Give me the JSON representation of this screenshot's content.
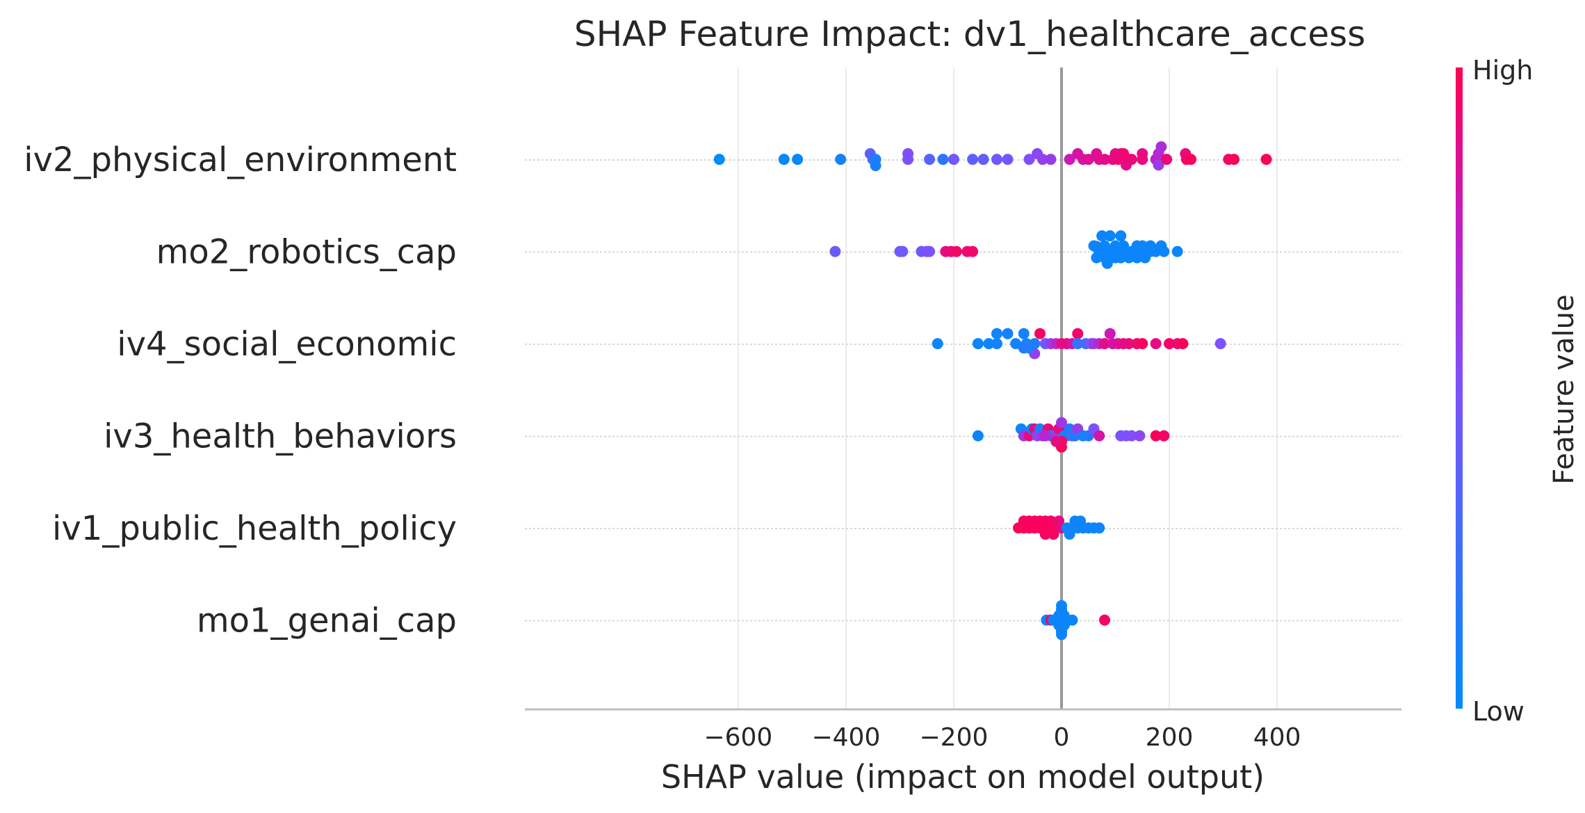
{
  "chart_data": {
    "type": "scatter",
    "subtype": "shap-beeswarm",
    "title": "SHAP Feature Impact: dv1_healthcare_access",
    "xlabel": "SHAP value (impact on model output)",
    "ylabel": "",
    "xlim": [
      -690,
      440
    ],
    "xticks": [
      -600,
      -400,
      -200,
      0,
      200,
      400
    ],
    "xtick_labels": [
      "−600",
      "−400",
      "−200",
      "0",
      "200",
      "400"
    ],
    "grid": true,
    "colorbar": {
      "label": "Feature value",
      "high": "High",
      "low": "Low",
      "low_color": "#008bfb",
      "high_color": "#ff0051"
    },
    "features": [
      "iv2_physical_environment",
      "mo2_robotics_cap",
      "iv4_social_economic",
      "iv3_health_behaviors",
      "iv1_public_health_policy",
      "mo1_genai_cap"
    ],
    "series": [
      {
        "name": "iv2_physical_environment",
        "points": [
          [
            -635,
            0.05
          ],
          [
            -515,
            0.05
          ],
          [
            -490,
            0.05
          ],
          [
            -410,
            0.05
          ],
          [
            -355,
            0.5
          ],
          [
            -350,
            0.05
          ],
          [
            -345,
            0.05
          ],
          [
            -345,
            -0.45
          ],
          [
            -285,
            0.5
          ],
          [
            -285,
            0.05
          ],
          [
            -245,
            0.05
          ],
          [
            -220,
            0.05
          ],
          [
            -200,
            0.05
          ],
          [
            -165,
            0.05
          ],
          [
            -145,
            0.05
          ],
          [
            -120,
            0.05
          ],
          [
            -100,
            0.05
          ],
          [
            -60,
            0.05
          ],
          [
            -45,
            0.5
          ],
          [
            -35,
            0.05
          ],
          [
            -20,
            0.05
          ],
          [
            15,
            0.05
          ],
          [
            30,
            0.5
          ],
          [
            40,
            0.05
          ],
          [
            50,
            0.05
          ],
          [
            65,
            0.5
          ],
          [
            70,
            0.05
          ],
          [
            80,
            0.05
          ],
          [
            95,
            0.05
          ],
          [
            100,
            0.5
          ],
          [
            105,
            0.05
          ],
          [
            110,
            0.5
          ],
          [
            115,
            0.5
          ],
          [
            125,
            0.05
          ],
          [
            120,
            -0.4
          ],
          [
            130,
            0.05
          ],
          [
            150,
            0.5
          ],
          [
            150,
            0.05
          ],
          [
            175,
            0.05
          ],
          [
            180,
            0.5
          ],
          [
            180,
            -0.4
          ],
          [
            185,
            1.05
          ],
          [
            195,
            0.05
          ],
          [
            230,
            0.5
          ],
          [
            232,
            0.05
          ],
          [
            240,
            0.05
          ],
          [
            310,
            0.05
          ],
          [
            320,
            0.05
          ],
          [
            380,
            0.05
          ]
        ],
        "values": [
          0.0,
          0.03,
          0.04,
          0.08,
          0.38,
          0.32,
          0.1,
          0.1,
          0.52,
          0.5,
          0.34,
          0.18,
          0.45,
          0.38,
          0.4,
          0.46,
          0.49,
          0.52,
          0.55,
          0.58,
          0.6,
          0.78,
          0.82,
          0.83,
          0.85,
          0.86,
          0.87,
          0.88,
          0.9,
          0.9,
          0.92,
          0.88,
          0.95,
          0.9,
          0.88,
          0.92,
          0.88,
          0.9,
          0.72,
          0.7,
          0.6,
          0.66,
          0.92,
          0.9,
          0.95,
          0.98,
          0.96,
          0.98,
          0.99
        ]
      },
      {
        "name": "mo2_robotics_cap",
        "points": [
          [
            -420,
            0.05
          ],
          [
            -300,
            0.05
          ],
          [
            -295,
            0.05
          ],
          [
            -260,
            0.05
          ],
          [
            -250,
            0.05
          ],
          [
            -245,
            0.05
          ],
          [
            -215,
            0.05
          ],
          [
            -205,
            0.05
          ],
          [
            -195,
            0.05
          ],
          [
            -175,
            0.05
          ],
          [
            -165,
            0.05
          ],
          [
            65,
            0.45
          ],
          [
            75,
            1.3
          ],
          [
            90,
            1.3
          ],
          [
            110,
            1.3
          ],
          [
            60,
            0.5
          ],
          [
            80,
            0.5
          ],
          [
            100,
            0.5
          ],
          [
            115,
            0.5
          ],
          [
            140,
            0.5
          ],
          [
            150,
            0.5
          ],
          [
            165,
            0.5
          ],
          [
            185,
            0.5
          ],
          [
            70,
            0.05
          ],
          [
            75,
            0.05
          ],
          [
            85,
            0.05
          ],
          [
            95,
            0.05
          ],
          [
            105,
            0.05
          ],
          [
            110,
            0.05
          ],
          [
            120,
            0.05
          ],
          [
            130,
            0.05
          ],
          [
            135,
            0.05
          ],
          [
            145,
            0.05
          ],
          [
            155,
            0.05
          ],
          [
            165,
            0.05
          ],
          [
            175,
            0.05
          ],
          [
            190,
            0.05
          ],
          [
            215,
            0.05
          ],
          [
            65,
            -0.45
          ],
          [
            80,
            -0.45
          ],
          [
            100,
            -0.45
          ],
          [
            110,
            -0.45
          ],
          [
            125,
            -0.45
          ],
          [
            140,
            -0.45
          ],
          [
            155,
            -0.45
          ],
          [
            85,
            -0.9
          ]
        ],
        "values": [
          0.42,
          0.44,
          0.44,
          0.44,
          0.5,
          0.5,
          0.9,
          0.92,
          0.95,
          0.92,
          0.95,
          0.1,
          0.05,
          0.05,
          0.05,
          0.05,
          0.05,
          0.05,
          0.05,
          0.05,
          0.05,
          0.05,
          0.05,
          0.05,
          0.05,
          0.05,
          0.05,
          0.05,
          0.05,
          0.05,
          0.05,
          0.05,
          0.05,
          0.05,
          0.05,
          0.05,
          0.05,
          0.05,
          0.05,
          0.05,
          0.05,
          0.05,
          0.05,
          0.05,
          0.05,
          0.05
        ]
      },
      {
        "name": "iv4_social_economic",
        "points": [
          [
            -230,
            0.05
          ],
          [
            -155,
            0.05
          ],
          [
            -135,
            0.05
          ],
          [
            -120,
            0.05
          ],
          [
            -120,
            0.85
          ],
          [
            -100,
            0.85
          ],
          [
            -85,
            0.05
          ],
          [
            -70,
            0.85
          ],
          [
            -65,
            0.05
          ],
          [
            -50,
            0.05
          ],
          [
            -40,
            0.85
          ],
          [
            -30,
            0.05
          ],
          [
            -20,
            0.05
          ],
          [
            -10,
            0.05
          ],
          [
            0,
            0.05
          ],
          [
            10,
            0.05
          ],
          [
            20,
            0.05
          ],
          [
            30,
            0.85
          ],
          [
            30,
            0.05
          ],
          [
            45,
            0.05
          ],
          [
            55,
            0.05
          ],
          [
            60,
            0.05
          ],
          [
            70,
            0.05
          ],
          [
            80,
            0.05
          ],
          [
            90,
            0.85
          ],
          [
            95,
            0.05
          ],
          [
            105,
            0.05
          ],
          [
            115,
            0.05
          ],
          [
            125,
            0.05
          ],
          [
            140,
            0.05
          ],
          [
            150,
            0.05
          ],
          [
            175,
            0.05
          ],
          [
            200,
            0.05
          ],
          [
            215,
            0.05
          ],
          [
            225,
            0.05
          ],
          [
            295,
            0.05
          ],
          [
            -50,
            -0.75
          ],
          [
            -70,
            -0.3
          ],
          [
            -60,
            -0.3
          ]
        ],
        "values": [
          0.06,
          0.05,
          0.05,
          0.08,
          0.06,
          0.08,
          0.08,
          0.08,
          0.06,
          0.12,
          0.96,
          0.4,
          0.6,
          0.7,
          0.88,
          0.9,
          0.8,
          0.95,
          0.2,
          0.3,
          0.5,
          0.6,
          0.7,
          0.88,
          0.78,
          0.82,
          0.85,
          0.88,
          0.9,
          0.94,
          0.98,
          0.9,
          0.96,
          0.92,
          0.98,
          0.5,
          0.58,
          0.14,
          0.14
        ]
      },
      {
        "name": "iv3_health_behaviors",
        "points": [
          [
            -155,
            0.05
          ],
          [
            -75,
            0.6
          ],
          [
            -70,
            0.05
          ],
          [
            -60,
            0.05
          ],
          [
            -55,
            0.6
          ],
          [
            -50,
            0.6
          ],
          [
            -45,
            0.05
          ],
          [
            -40,
            0.6
          ],
          [
            -35,
            0.05
          ],
          [
            -25,
            0.6
          ],
          [
            -20,
            0.05
          ],
          [
            -10,
            0.05
          ],
          [
            -5,
            0.6
          ],
          [
            5,
            0.05
          ],
          [
            10,
            0.05
          ],
          [
            15,
            0.6
          ],
          [
            20,
            0.05
          ],
          [
            25,
            0.05
          ],
          [
            30,
            0.6
          ],
          [
            40,
            0.05
          ],
          [
            50,
            0.05
          ],
          [
            60,
            0.6
          ],
          [
            70,
            0.05
          ],
          [
            110,
            0.05
          ],
          [
            120,
            0.05
          ],
          [
            130,
            0.05
          ],
          [
            145,
            0.05
          ],
          [
            175,
            0.05
          ],
          [
            190,
            0.05
          ],
          [
            0,
            1.1
          ],
          [
            0,
            -0.4
          ],
          [
            0,
            -0.85
          ],
          [
            -10,
            -0.4
          ],
          [
            -30,
            0.05
          ]
        ],
        "values": [
          0.05,
          0.05,
          0.62,
          0.9,
          0.05,
          0.9,
          0.56,
          0.1,
          0.62,
          0.92,
          0.08,
          0.58,
          0.9,
          0.1,
          0.08,
          0.12,
          0.3,
          0.15,
          0.6,
          0.1,
          0.15,
          0.5,
          0.82,
          0.48,
          0.5,
          0.52,
          0.55,
          0.98,
          0.96,
          0.62,
          0.95,
          0.98,
          0.9,
          0.7
        ]
      },
      {
        "name": "iv1_public_health_policy",
        "points": [
          [
            -70,
            0.6
          ],
          [
            -60,
            0.6
          ],
          [
            -50,
            0.6
          ],
          [
            -40,
            0.6
          ],
          [
            -30,
            0.6
          ],
          [
            -20,
            0.6
          ],
          [
            -5,
            0.6
          ],
          [
            25,
            0.6
          ],
          [
            35,
            0.6
          ],
          [
            -80,
            0.05
          ],
          [
            -70,
            0.05
          ],
          [
            -60,
            0.05
          ],
          [
            -50,
            0.05
          ],
          [
            -40,
            0.05
          ],
          [
            -30,
            0.05
          ],
          [
            -20,
            0.05
          ],
          [
            -10,
            0.05
          ],
          [
            0,
            0.05
          ],
          [
            10,
            0.05
          ],
          [
            20,
            0.05
          ],
          [
            30,
            0.05
          ],
          [
            40,
            0.05
          ],
          [
            50,
            0.05
          ],
          [
            60,
            0.05
          ],
          [
            70,
            0.05
          ],
          [
            -30,
            -0.45
          ],
          [
            -15,
            -0.45
          ],
          [
            15,
            -0.45
          ]
        ],
        "values": [
          0.96,
          0.97,
          0.97,
          0.98,
          0.97,
          0.96,
          0.9,
          0.06,
          0.06,
          0.98,
          0.97,
          0.98,
          0.98,
          0.97,
          0.98,
          0.97,
          0.96,
          0.9,
          0.06,
          0.06,
          0.06,
          0.05,
          0.06,
          0.05,
          0.06,
          0.97,
          0.97,
          0.06
        ]
      },
      {
        "name": "mo1_genai_cap",
        "points": [
          [
            0,
            1.2
          ],
          [
            0,
            0.9
          ],
          [
            0,
            0.65
          ],
          [
            -5,
            0.4
          ],
          [
            5,
            0.4
          ],
          [
            -5,
            0.2
          ],
          [
            5,
            0.2
          ],
          [
            -10,
            0.05
          ],
          [
            0,
            0.05
          ],
          [
            10,
            0.05
          ],
          [
            -28,
            0.05
          ],
          [
            -20,
            0.05
          ],
          [
            20,
            0.05
          ],
          [
            80,
            0.05
          ],
          [
            -5,
            -0.15
          ],
          [
            5,
            -0.15
          ],
          [
            -5,
            -0.35
          ],
          [
            5,
            -0.35
          ],
          [
            0,
            -0.6
          ],
          [
            0,
            -0.85
          ],
          [
            0,
            -1.1
          ],
          [
            -15,
            0.05
          ]
        ],
        "values": [
          0.05,
          0.05,
          0.05,
          0.05,
          0.05,
          0.06,
          0.05,
          0.05,
          0.06,
          0.05,
          0.05,
          0.95,
          0.05,
          0.96,
          0.05,
          0.05,
          0.05,
          0.05,
          0.05,
          0.05,
          0.05,
          0.05
        ]
      }
    ]
  }
}
